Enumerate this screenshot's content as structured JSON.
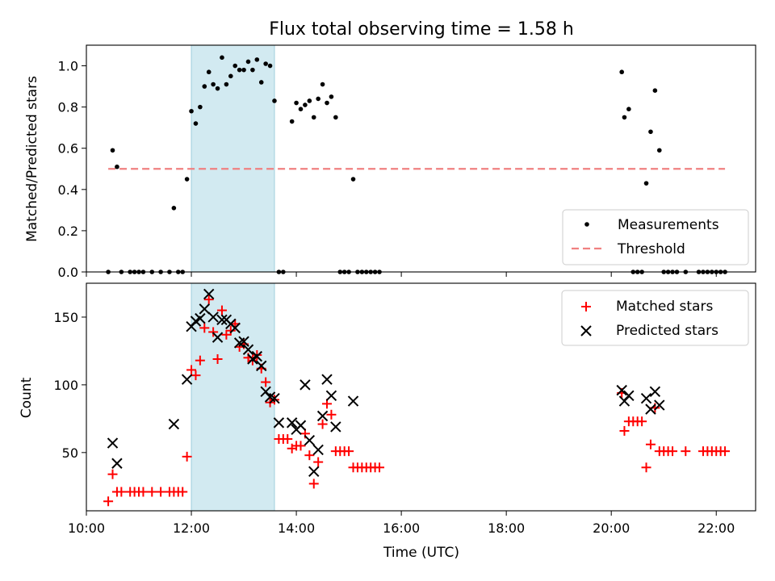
{
  "chart_data": [
    {
      "type": "scatter",
      "title": "Flux total observing time = 1.58 h",
      "ylabel": "Matched/Predicted stars",
      "xlim": [
        "10:00",
        "22:45"
      ],
      "ylim": [
        0,
        1.1
      ],
      "yticks": [
        "0.0",
        "0.2",
        "0.4",
        "0.6",
        "0.8",
        "1.0"
      ],
      "shaded_interval": [
        "12:00",
        "13:35"
      ],
      "legend_position": "lower right",
      "series": [
        {
          "name": "Measurements",
          "marker": "dot",
          "color": "#000000",
          "points": [
            [
              "10:25",
              0
            ],
            [
              "10:30",
              0.59
            ],
            [
              "10:35",
              0.51
            ],
            [
              "10:40",
              0
            ],
            [
              "10:50",
              0
            ],
            [
              "10:55",
              0
            ],
            [
              "11:00",
              0
            ],
            [
              "11:05",
              0
            ],
            [
              "11:15",
              0
            ],
            [
              "11:25",
              0
            ],
            [
              "11:35",
              0
            ],
            [
              "11:40",
              0.31
            ],
            [
              "11:45",
              0
            ],
            [
              "11:50",
              0
            ],
            [
              "11:55",
              0.45
            ],
            [
              "12:00",
              0.78
            ],
            [
              "12:05",
              0.72
            ],
            [
              "12:10",
              0.8
            ],
            [
              "12:15",
              0.9
            ],
            [
              "12:20",
              0.97
            ],
            [
              "12:25",
              0.91
            ],
            [
              "12:30",
              0.89
            ],
            [
              "12:35",
              1.04
            ],
            [
              "12:40",
              0.91
            ],
            [
              "12:45",
              0.95
            ],
            [
              "12:50",
              1.0
            ],
            [
              "12:55",
              0.98
            ],
            [
              "13:00",
              0.98
            ],
            [
              "13:05",
              1.02
            ],
            [
              "13:10",
              0.98
            ],
            [
              "13:15",
              1.03
            ],
            [
              "13:20",
              0.92
            ],
            [
              "13:25",
              1.01
            ],
            [
              "13:30",
              1.0
            ],
            [
              "13:35",
              0.83
            ],
            [
              "13:40",
              0
            ],
            [
              "13:45",
              0
            ],
            [
              "13:55",
              0.73
            ],
            [
              "14:00",
              0.82
            ],
            [
              "14:05",
              0.79
            ],
            [
              "14:10",
              0.81
            ],
            [
              "14:15",
              0.83
            ],
            [
              "14:20",
              0.75
            ],
            [
              "14:25",
              0.84
            ],
            [
              "14:30",
              0.91
            ],
            [
              "14:35",
              0.82
            ],
            [
              "14:40",
              0.85
            ],
            [
              "14:45",
              0.75
            ],
            [
              "14:50",
              0
            ],
            [
              "14:55",
              0
            ],
            [
              "15:00",
              0
            ],
            [
              "15:05",
              0.45
            ],
            [
              "15:10",
              0
            ],
            [
              "15:15",
              0
            ],
            [
              "15:20",
              0
            ],
            [
              "15:25",
              0
            ],
            [
              "15:30",
              0
            ],
            [
              "15:35",
              0
            ],
            [
              "20:12",
              0.97
            ],
            [
              "20:15",
              0.75
            ],
            [
              "20:20",
              0.79
            ],
            [
              "20:25",
              0
            ],
            [
              "20:30",
              0
            ],
            [
              "20:35",
              0
            ],
            [
              "20:40",
              0.43
            ],
            [
              "20:45",
              0.68
            ],
            [
              "20:50",
              0.88
            ],
            [
              "20:55",
              0.59
            ],
            [
              "21:00",
              0
            ],
            [
              "21:05",
              0
            ],
            [
              "21:10",
              0
            ],
            [
              "21:15",
              0
            ],
            [
              "21:25",
              0
            ],
            [
              "21:40",
              0
            ],
            [
              "21:45",
              0
            ],
            [
              "21:50",
              0
            ],
            [
              "21:55",
              0
            ],
            [
              "22:00",
              0
            ],
            [
              "22:05",
              0
            ],
            [
              "22:10",
              0
            ]
          ]
        },
        {
          "name": "Threshold",
          "style": "dashed",
          "color": "#f08080",
          "x": [
            "10:25",
            "22:10"
          ],
          "y": [
            0.5,
            0.5
          ]
        }
      ]
    },
    {
      "type": "scatter",
      "xlabel": "Time (UTC)",
      "ylabel": "Count",
      "xlim": [
        "10:00",
        "22:45"
      ],
      "ylim": [
        7,
        175
      ],
      "xticks": [
        "10:00",
        "12:00",
        "14:00",
        "16:00",
        "18:00",
        "20:00",
        "22:00"
      ],
      "yticks": [
        "50",
        "100",
        "150"
      ],
      "shaded_interval": [
        "12:00",
        "13:35"
      ],
      "legend_position": "upper right",
      "series": [
        {
          "name": "Matched stars",
          "marker": "plus",
          "color": "#ff0000",
          "points": [
            [
              "10:25",
              14
            ],
            [
              "10:30",
              34
            ],
            [
              "10:35",
              21
            ],
            [
              "10:40",
              21
            ],
            [
              "10:50",
              21
            ],
            [
              "10:55",
              21
            ],
            [
              "11:00",
              21
            ],
            [
              "11:05",
              21
            ],
            [
              "11:15",
              21
            ],
            [
              "11:25",
              21
            ],
            [
              "11:35",
              21
            ],
            [
              "11:40",
              21
            ],
            [
              "11:45",
              21
            ],
            [
              "11:50",
              21
            ],
            [
              "11:55",
              47
            ],
            [
              "12:00",
              111
            ],
            [
              "12:05",
              107
            ],
            [
              "12:10",
              118
            ],
            [
              "12:15",
              142
            ],
            [
              "12:20",
              163
            ],
            [
              "12:25",
              139
            ],
            [
              "12:30",
              119
            ],
            [
              "12:35",
              155
            ],
            [
              "12:40",
              137
            ],
            [
              "12:45",
              140
            ],
            [
              "12:50",
              145
            ],
            [
              "12:55",
              128
            ],
            [
              "13:00",
              130
            ],
            [
              "13:05",
              120
            ],
            [
              "13:10",
              118
            ],
            [
              "13:15",
              122
            ],
            [
              "13:20",
              112
            ],
            [
              "13:25",
              102
            ],
            [
              "13:30",
              87
            ],
            [
              "13:35",
              89
            ],
            [
              "13:40",
              60
            ],
            [
              "13:45",
              60
            ],
            [
              "13:50",
              60
            ],
            [
              "13:55",
              53
            ],
            [
              "14:00",
              55
            ],
            [
              "14:05",
              55
            ],
            [
              "14:10",
              64
            ],
            [
              "14:15",
              48
            ],
            [
              "14:20",
              27
            ],
            [
              "14:25",
              43
            ],
            [
              "14:30",
              71
            ],
            [
              "14:35",
              86
            ],
            [
              "14:40",
              78
            ],
            [
              "14:45",
              51
            ],
            [
              "14:50",
              51
            ],
            [
              "14:55",
              51
            ],
            [
              "15:00",
              51
            ],
            [
              "15:05",
              39
            ],
            [
              "15:10",
              39
            ],
            [
              "15:15",
              39
            ],
            [
              "15:20",
              39
            ],
            [
              "15:25",
              39
            ],
            [
              "15:30",
              39
            ],
            [
              "15:35",
              39
            ],
            [
              "20:12",
              94
            ],
            [
              "20:15",
              66
            ],
            [
              "20:20",
              73
            ],
            [
              "20:25",
              73
            ],
            [
              "20:30",
              73
            ],
            [
              "20:35",
              73
            ],
            [
              "20:40",
              39
            ],
            [
              "20:45",
              56
            ],
            [
              "20:50",
              83
            ],
            [
              "20:55",
              51
            ],
            [
              "21:00",
              51
            ],
            [
              "21:05",
              51
            ],
            [
              "21:10",
              51
            ],
            [
              "21:25",
              51
            ],
            [
              "21:45",
              51
            ],
            [
              "21:50",
              51
            ],
            [
              "21:55",
              51
            ],
            [
              "22:00",
              51
            ],
            [
              "22:05",
              51
            ],
            [
              "22:10",
              51
            ]
          ]
        },
        {
          "name": "Predicted stars",
          "marker": "x",
          "color": "#000000",
          "points": [
            [
              "10:30",
              57
            ],
            [
              "10:35",
              42
            ],
            [
              "11:40",
              71
            ],
            [
              "11:55",
              104
            ],
            [
              "12:00",
              143
            ],
            [
              "12:05",
              147
            ],
            [
              "12:10",
              149
            ],
            [
              "12:15",
              156
            ],
            [
              "12:20",
              167
            ],
            [
              "12:25",
              150
            ],
            [
              "12:30",
              135
            ],
            [
              "12:35",
              148
            ],
            [
              "12:40",
              148
            ],
            [
              "12:45",
              145
            ],
            [
              "12:50",
              142
            ],
            [
              "12:55",
              131
            ],
            [
              "13:00",
              132
            ],
            [
              "13:05",
              126
            ],
            [
              "13:10",
              119
            ],
            [
              "13:15",
              121
            ],
            [
              "13:20",
              114
            ],
            [
              "13:25",
              95
            ],
            [
              "13:30",
              91
            ],
            [
              "13:35",
              90
            ],
            [
              "13:40",
              72
            ],
            [
              "13:55",
              72
            ],
            [
              "14:00",
              67
            ],
            [
              "14:05",
              70
            ],
            [
              "14:10",
              100
            ],
            [
              "14:15",
              59
            ],
            [
              "14:20",
              36
            ],
            [
              "14:25",
              52
            ],
            [
              "14:30",
              77
            ],
            [
              "14:35",
              104
            ],
            [
              "14:40",
              92
            ],
            [
              "14:45",
              69
            ],
            [
              "15:05",
              88
            ],
            [
              "20:12",
              96
            ],
            [
              "20:15",
              88
            ],
            [
              "20:20",
              92
            ],
            [
              "20:40",
              90
            ],
            [
              "20:45",
              82
            ],
            [
              "20:50",
              95
            ],
            [
              "20:55",
              85
            ]
          ]
        }
      ]
    }
  ]
}
